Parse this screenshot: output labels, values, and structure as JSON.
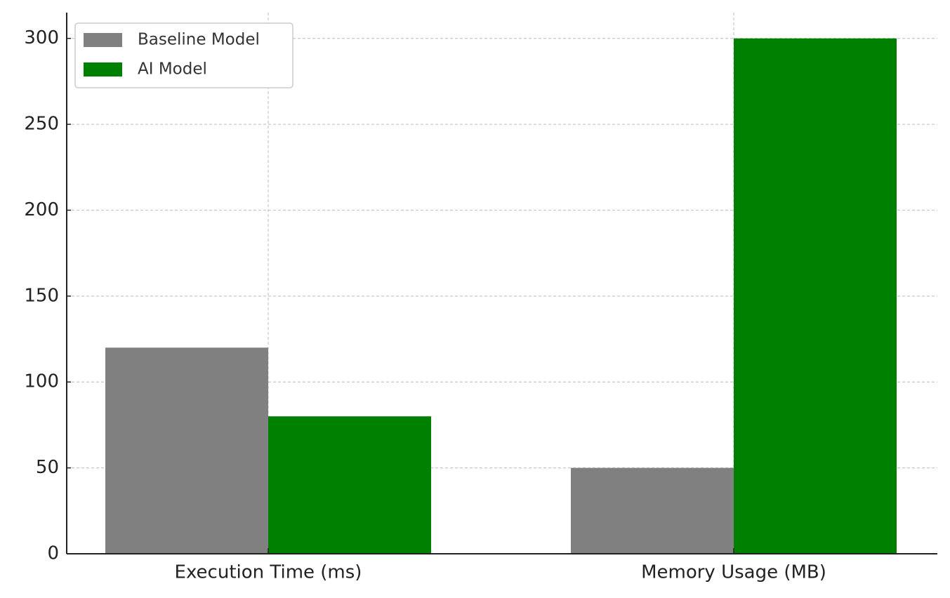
{
  "chart_data": {
    "type": "bar",
    "categories": [
      "Execution Time (ms)",
      "Memory Usage (MB)"
    ],
    "series": [
      {
        "name": "Baseline Model",
        "color": "#808080",
        "values": [
          120,
          50
        ]
      },
      {
        "name": "AI Model",
        "color": "#008000",
        "values": [
          80,
          300
        ]
      }
    ],
    "ylim": [
      0,
      315
    ],
    "yticks": [
      0,
      50,
      100,
      150,
      200,
      250,
      300
    ],
    "grid": true,
    "legend": "upper left"
  }
}
